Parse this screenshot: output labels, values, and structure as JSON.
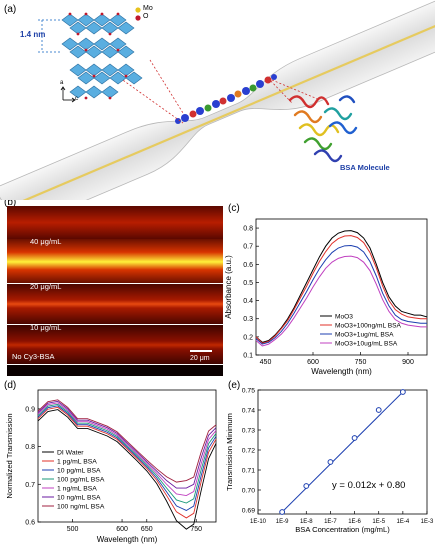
{
  "panels": {
    "a": "(a)",
    "b": "(b)",
    "c": "(c)",
    "d": "(d)",
    "e": "(e)"
  },
  "panel_a": {
    "spacing_label": "1.4 nm",
    "legend": [
      {
        "label": "Mo",
        "color": "#e7c21c"
      },
      {
        "label": "O",
        "color": "#c0182b"
      }
    ],
    "axis_a": "a",
    "axis_c": "c",
    "molecule_label": "BSA Molecule",
    "colors": {
      "fiber": "#f2e8a8",
      "crystal": "#4aa3d8",
      "protein_label": "#1d3fa6"
    }
  },
  "panel_b": {
    "strips": [
      {
        "label": "",
        "brightness": 1.0
      },
      {
        "label": "40 μg/mL",
        "brightness": 0.95
      },
      {
        "label": "20 μg/mL",
        "brightness": 0.6
      },
      {
        "label": "10 μg/mL",
        "brightness": 0.4
      },
      {
        "label": "No Cy3-BSA",
        "brightness": 0.1
      }
    ],
    "scale_bar": "20 μm"
  },
  "chart_data": [
    {
      "panel": "c",
      "type": "line",
      "xlabel": "Wavelength (nm)",
      "ylabel": "Absorbance (a.u.)",
      "xlim": [
        420,
        960
      ],
      "ylim": [
        0.1,
        0.85
      ],
      "xticks": [
        600,
        750,
        900
      ],
      "xtick_labels": [
        "600",
        "750",
        "900"
      ],
      "extra_xtick_label": "450",
      "yticks": [
        0.1,
        0.2,
        0.3,
        0.4,
        0.5,
        0.6,
        0.7,
        0.8
      ],
      "ytick_labels": [
        "0.1",
        "0.2",
        "0.3",
        "0.4",
        "0.5",
        "0.6",
        "0.7",
        "0.8"
      ],
      "x": [
        420,
        440,
        460,
        480,
        500,
        520,
        540,
        560,
        580,
        600,
        620,
        640,
        660,
        680,
        700,
        720,
        740,
        760,
        780,
        800,
        820,
        840,
        860,
        880,
        900,
        920,
        940,
        960
      ],
      "series": [
        {
          "name": "MoO3",
          "color": "#000000",
          "values": [
            0.2,
            0.17,
            0.18,
            0.21,
            0.25,
            0.3,
            0.36,
            0.43,
            0.5,
            0.57,
            0.64,
            0.7,
            0.745,
            0.772,
            0.784,
            0.786,
            0.775,
            0.745,
            0.69,
            0.6,
            0.5,
            0.42,
            0.37,
            0.34,
            0.33,
            0.32,
            0.32,
            0.31
          ]
        },
        {
          "name": "MoO3+100ng/mL BSA",
          "color": "#e0302a",
          "values": [
            0.2,
            0.165,
            0.175,
            0.205,
            0.245,
            0.29,
            0.35,
            0.415,
            0.48,
            0.55,
            0.615,
            0.67,
            0.715,
            0.742,
            0.756,
            0.758,
            0.748,
            0.72,
            0.665,
            0.58,
            0.48,
            0.4,
            0.35,
            0.325,
            0.31,
            0.305,
            0.3,
            0.3
          ]
        },
        {
          "name": "MoO3+1ug/mL BSA",
          "color": "#1c3fb0",
          "values": [
            0.19,
            0.16,
            0.17,
            0.195,
            0.23,
            0.275,
            0.33,
            0.39,
            0.45,
            0.515,
            0.575,
            0.625,
            0.665,
            0.69,
            0.702,
            0.704,
            0.695,
            0.668,
            0.615,
            0.535,
            0.44,
            0.37,
            0.32,
            0.295,
            0.285,
            0.28,
            0.275,
            0.275
          ]
        },
        {
          "name": "MoO3+10ug/mL BSA",
          "color": "#c040c0",
          "values": [
            0.18,
            0.15,
            0.16,
            0.185,
            0.215,
            0.255,
            0.305,
            0.36,
            0.415,
            0.475,
            0.53,
            0.578,
            0.612,
            0.633,
            0.643,
            0.645,
            0.637,
            0.612,
            0.565,
            0.49,
            0.405,
            0.34,
            0.295,
            0.275,
            0.265,
            0.26,
            0.255,
            0.255
          ]
        }
      ],
      "legend_placement": "bottom-right"
    },
    {
      "panel": "d",
      "type": "line",
      "xlabel": "Wavelength (nm)",
      "ylabel": "Normalized Transmission",
      "xlim": [
        430,
        790
      ],
      "ylim": [
        0.6,
        0.95
      ],
      "xticks": [
        500,
        600,
        650,
        750
      ],
      "xtick_labels": [
        "500",
        "600",
        "650",
        "750"
      ],
      "yticks": [
        0.6,
        0.7,
        0.8,
        0.9
      ],
      "ytick_labels": [
        "0.6",
        "0.7",
        "0.8",
        "0.9"
      ],
      "x": [
        430,
        450,
        470,
        490,
        510,
        530,
        550,
        570,
        590,
        610,
        630,
        650,
        670,
        690,
        710,
        730,
        745,
        760,
        775,
        790
      ],
      "series": [
        {
          "name": "DI Water",
          "color": "#000000",
          "offset": -0.055
        },
        {
          "name": "1 pg/mL BSA",
          "color": "#e0302a",
          "offset": -0.04
        },
        {
          "name": "10 pg/mL BSA",
          "color": "#1c3fb0",
          "offset": -0.03
        },
        {
          "name": "100 pg/mL BSA",
          "color": "#1a9a7a",
          "offset": -0.02
        },
        {
          "name": "1 ng/mL BSA",
          "color": "#c040c0",
          "offset": -0.01
        },
        {
          "name": "10 ng/mL BSA",
          "color": "#6a1aa0",
          "offset": 0.0
        },
        {
          "name": "100 ng/mL BSA",
          "color": "#a02040",
          "offset": 0.01
        }
      ],
      "base_values": [
        0.89,
        0.915,
        0.92,
        0.9,
        0.87,
        0.87,
        0.86,
        0.85,
        0.835,
        0.81,
        0.785,
        0.76,
        0.735,
        0.71,
        0.69,
        0.69,
        0.7,
        0.77,
        0.83,
        0.85
      ],
      "legend_placement": "bottom-left"
    },
    {
      "panel": "e",
      "type": "scatter",
      "xlabel": "BSA Concentration (mg/mL)",
      "ylabel": "Transmission Minimum",
      "x_scale": "log",
      "xlim": [
        1e-10,
        0.001
      ],
      "ylim": [
        0.688,
        0.75
      ],
      "xtick_labels": [
        "1E-10",
        "1E-9",
        "1E-8",
        "1E-7",
        "1E-6",
        "1E-5",
        "1E-4",
        "1E-3"
      ],
      "yticks": [
        0.69,
        0.7,
        0.71,
        0.72,
        0.73,
        0.74,
        0.75
      ],
      "ytick_labels": [
        "0.69",
        "0.70",
        "0.71",
        "0.72",
        "0.73",
        "0.74",
        "0.75"
      ],
      "x": [
        1e-09,
        1e-08,
        1e-07,
        1e-06,
        1e-05,
        0.0001
      ],
      "y": [
        0.689,
        0.702,
        0.714,
        0.726,
        0.74,
        0.749
      ],
      "fit_label": "y = 0.012x + 0.80",
      "marker_color": "#1c3fb0"
    }
  ]
}
